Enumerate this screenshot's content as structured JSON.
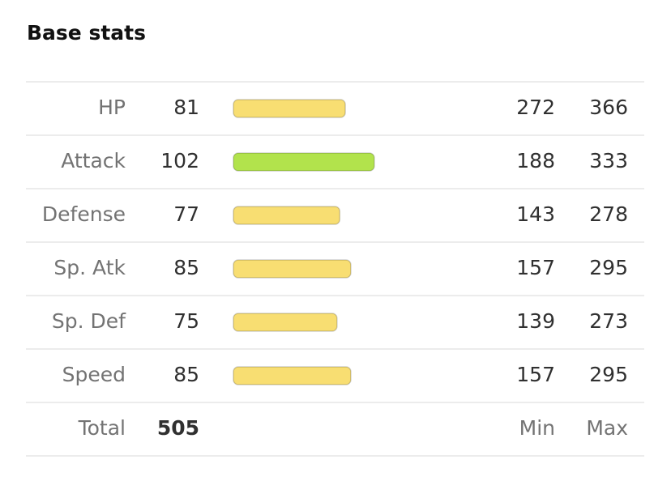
{
  "header": {
    "title": "Base stats"
  },
  "table": {
    "rows": [
      {
        "label": "HP",
        "base": 81,
        "min": 272,
        "max": 366,
        "color": "#f8de72"
      },
      {
        "label": "Attack",
        "base": 102,
        "min": 188,
        "max": 333,
        "color": "#b2e34c"
      },
      {
        "label": "Defense",
        "base": 77,
        "min": 143,
        "max": 278,
        "color": "#f8de72"
      },
      {
        "label": "Sp. Atk",
        "base": 85,
        "min": 157,
        "max": 295,
        "color": "#f8de72"
      },
      {
        "label": "Sp. Def",
        "base": 75,
        "min": 139,
        "max": 273,
        "color": "#f8de72"
      },
      {
        "label": "Speed",
        "base": 85,
        "min": 157,
        "max": 295,
        "color": "#f8de72"
      }
    ],
    "footer": {
      "label": "Total",
      "total": 505,
      "min_label": "Min",
      "max_label": "Max"
    }
  }
}
